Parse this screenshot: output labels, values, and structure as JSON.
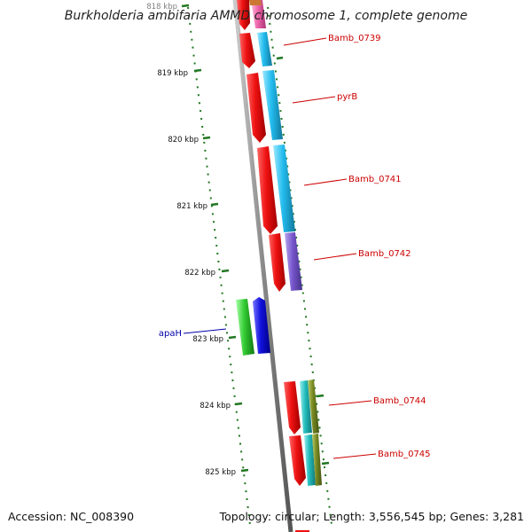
{
  "title": "Burkholderia ambifaria AMMD chromosome 1, complete genome",
  "footer": {
    "accession": "Accession: NC_008390",
    "topology": "Topology: circular; Length: 3,556,545 bp; Genes: 3,281"
  },
  "ticks": [
    "818 kbp",
    "819 kbp",
    "820 kbp",
    "821 kbp",
    "822 kbp",
    "823 kbp",
    "824 kbp",
    "825 kbp"
  ],
  "gene_labels": [
    "Bamb_0739",
    "pyrB",
    "Bamb_0741",
    "Bamb_0742",
    "apaH",
    "Bamb_0744",
    "Bamb_0745"
  ],
  "colors": {
    "backbone": "#8a8a8a",
    "gene_red": "#ee1111",
    "cyan": "#22bbee",
    "purple": "#7755cc",
    "green": "#33cc33",
    "blue": "#1111dd",
    "teal": "#22bbbb",
    "olive": "#778822",
    "pink": "#ee66aa",
    "tick_green": "#227722",
    "label_red": "#cc0000",
    "label_blue": "#0000aa"
  }
}
